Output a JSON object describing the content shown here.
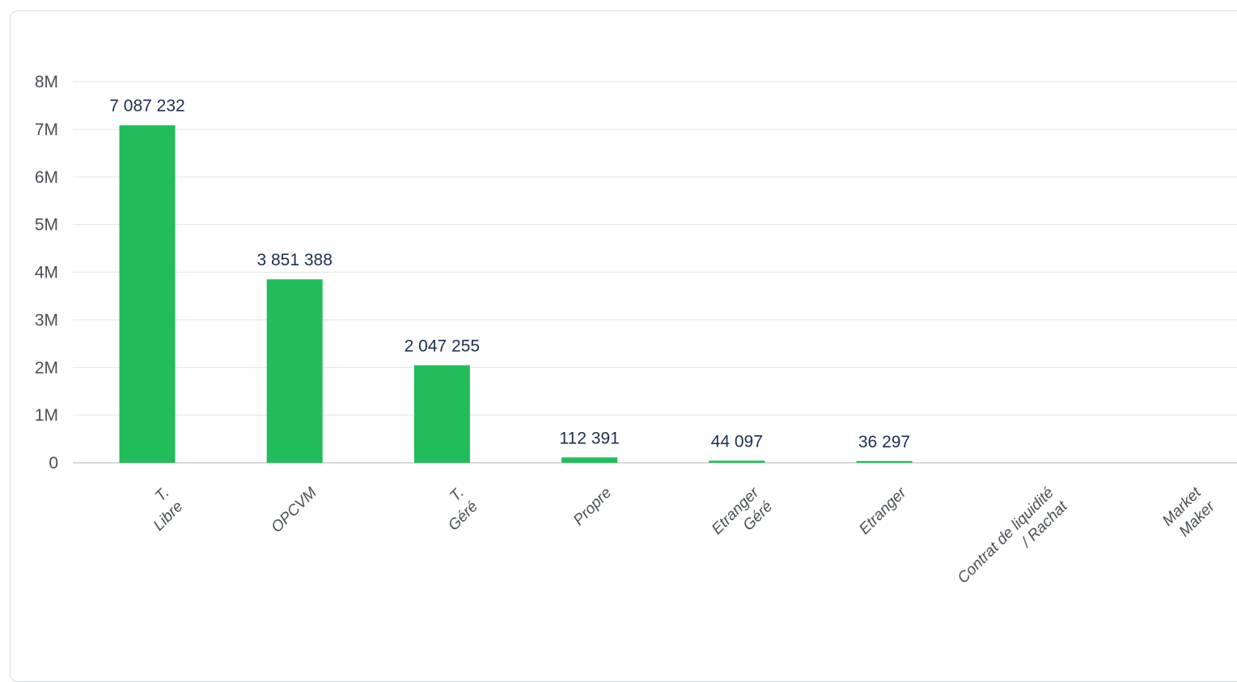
{
  "chart_data": {
    "type": "bar",
    "categories": [
      [
        "T.",
        "Libre"
      ],
      [
        "OPCVM"
      ],
      [
        "T.",
        "Géré"
      ],
      [
        "Propre"
      ],
      [
        "Etranger",
        "Géré"
      ],
      [
        "Etranger"
      ],
      [
        "Contrat de liquidité",
        "/ Rachat"
      ],
      [
        "Market",
        "Maker"
      ]
    ],
    "values": [
      7087232,
      3851388,
      2047255,
      112391,
      44097,
      36297,
      0,
      0
    ],
    "data_labels": [
      "7 087 232",
      "3 851 388",
      "2 047 255",
      "112 391",
      "44 097",
      "36 297",
      "",
      ""
    ],
    "ylim": [
      0,
      8000000
    ],
    "y_ticks": [
      0,
      1000000,
      2000000,
      3000000,
      4000000,
      5000000,
      6000000,
      7000000,
      8000000
    ],
    "y_tick_labels": [
      "0",
      "1M",
      "2M",
      "3M",
      "4M",
      "5M",
      "6M",
      "7M",
      "8M"
    ],
    "grid": true,
    "colors": {
      "bar": "#22bd5a",
      "grid": "#e6e8eb",
      "axis": "#c7ccd1",
      "data_label": "#1d2f4f",
      "tick_label": "#4a4f57"
    }
  }
}
